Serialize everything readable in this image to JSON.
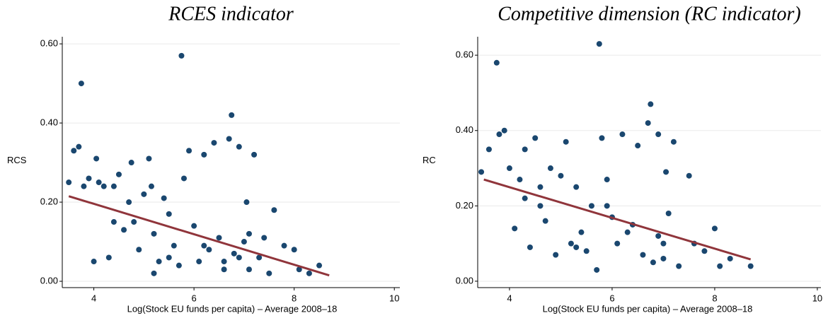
{
  "chart_data": [
    {
      "type": "scatter",
      "title": "RCES indicator",
      "x_label": "Log(Stock EU funds per capita) – Average 2008–18",
      "y_label": "RCS",
      "color": "#1a476f",
      "x": [
        3.5,
        3.6,
        3.7,
        3.75,
        3.8,
        3.9,
        4.0,
        4.05,
        4.1,
        4.2,
        4.3,
        4.4,
        4.5,
        4.6,
        4.7,
        4.75,
        4.8,
        4.9,
        5.0,
        5.1,
        5.15,
        5.2,
        5.3,
        5.4,
        5.5,
        5.6,
        5.7,
        5.75,
        5.8,
        5.9,
        6.0,
        6.1,
        6.2,
        6.3,
        6.4,
        6.5,
        6.6,
        6.7,
        6.75,
        6.8,
        6.9,
        7.0,
        7.05,
        7.1,
        7.2,
        7.3,
        7.4,
        7.5,
        7.6,
        7.8,
        8.0,
        8.1,
        8.3,
        8.5,
        6.6,
        5.2,
        4.4,
        6.9,
        7.1,
        5.5,
        6.2
      ],
      "values": [
        0.25,
        0.33,
        0.34,
        0.5,
        0.24,
        0.26,
        0.05,
        0.31,
        0.25,
        0.24,
        0.06,
        0.24,
        0.27,
        0.13,
        0.2,
        0.3,
        0.15,
        0.08,
        0.22,
        0.31,
        0.24,
        0.12,
        0.05,
        0.21,
        0.06,
        0.09,
        0.04,
        0.57,
        0.26,
        0.33,
        0.14,
        0.05,
        0.32,
        0.08,
        0.35,
        0.11,
        0.05,
        0.36,
        0.42,
        0.07,
        0.34,
        0.1,
        0.2,
        0.03,
        0.32,
        0.06,
        0.11,
        0.02,
        0.18,
        0.09,
        0.08,
        0.03,
        0.02,
        0.04,
        0.03,
        0.02,
        0.15,
        0.06,
        0.12,
        0.17,
        0.09
      ],
      "fit": {
        "x": [
          3.5,
          8.7
        ],
        "values": [
          0.215,
          0.015
        ],
        "color": "#90353b"
      },
      "xlim": [
        3.37,
        10.11
      ],
      "ylim": [
        -0.016,
        0.618
      ],
      "xticks": [
        4,
        6,
        8,
        10
      ],
      "yticks": [
        {
          "value": 0,
          "label": "0.00"
        },
        {
          "value": 0.2,
          "label": "0.20"
        },
        {
          "value": 0.4,
          "label": "0.40"
        },
        {
          "value": 0.6,
          "label": "0.60"
        }
      ],
      "grid": true
    },
    {
      "type": "scatter",
      "title": "Competitive dimension (RC indicator)",
      "x_label": "Log(Stock EU funds per capita) – Average 2008–18",
      "y_label": "RC",
      "color": "#1a476f",
      "x": [
        3.45,
        3.6,
        3.75,
        3.8,
        3.9,
        4.0,
        4.1,
        4.2,
        4.3,
        4.4,
        4.5,
        4.6,
        4.7,
        4.8,
        4.9,
        5.0,
        5.1,
        5.2,
        5.3,
        5.4,
        5.5,
        5.6,
        5.7,
        5.75,
        5.8,
        5.9,
        6.0,
        6.1,
        6.2,
        6.3,
        6.5,
        6.6,
        6.7,
        6.75,
        6.8,
        6.9,
        7.0,
        7.05,
        7.1,
        7.2,
        7.3,
        7.5,
        7.6,
        7.8,
        8.0,
        8.1,
        8.3,
        8.7,
        6.9,
        5.3,
        4.6,
        7.0,
        6.4,
        5.9,
        4.3
      ],
      "values": [
        0.29,
        0.35,
        0.58,
        0.39,
        0.4,
        0.3,
        0.14,
        0.27,
        0.35,
        0.09,
        0.38,
        0.25,
        0.16,
        0.3,
        0.07,
        0.28,
        0.37,
        0.1,
        0.25,
        0.13,
        0.08,
        0.2,
        0.03,
        0.63,
        0.38,
        0.27,
        0.17,
        0.1,
        0.39,
        0.13,
        0.36,
        0.07,
        0.42,
        0.47,
        0.05,
        0.39,
        0.1,
        0.29,
        0.18,
        0.37,
        0.04,
        0.28,
        0.1,
        0.08,
        0.14,
        0.04,
        0.06,
        0.04,
        0.12,
        0.09,
        0.2,
        0.06,
        0.15,
        0.2,
        0.22
      ],
      "fit": {
        "x": [
          3.5,
          8.7
        ],
        "values": [
          0.27,
          0.058
        ],
        "color": "#90353b"
      },
      "xlim": [
        3.38,
        10.07
      ],
      "ylim": [
        -0.017,
        0.649
      ],
      "xticks": [
        4,
        6,
        8,
        10
      ],
      "yticks": [
        {
          "value": 0,
          "label": "0.00"
        },
        {
          "value": 0.2,
          "label": "0.20"
        },
        {
          "value": 0.4,
          "label": "0.40"
        },
        {
          "value": 0.6,
          "label": "0.60"
        }
      ],
      "grid": true
    }
  ]
}
